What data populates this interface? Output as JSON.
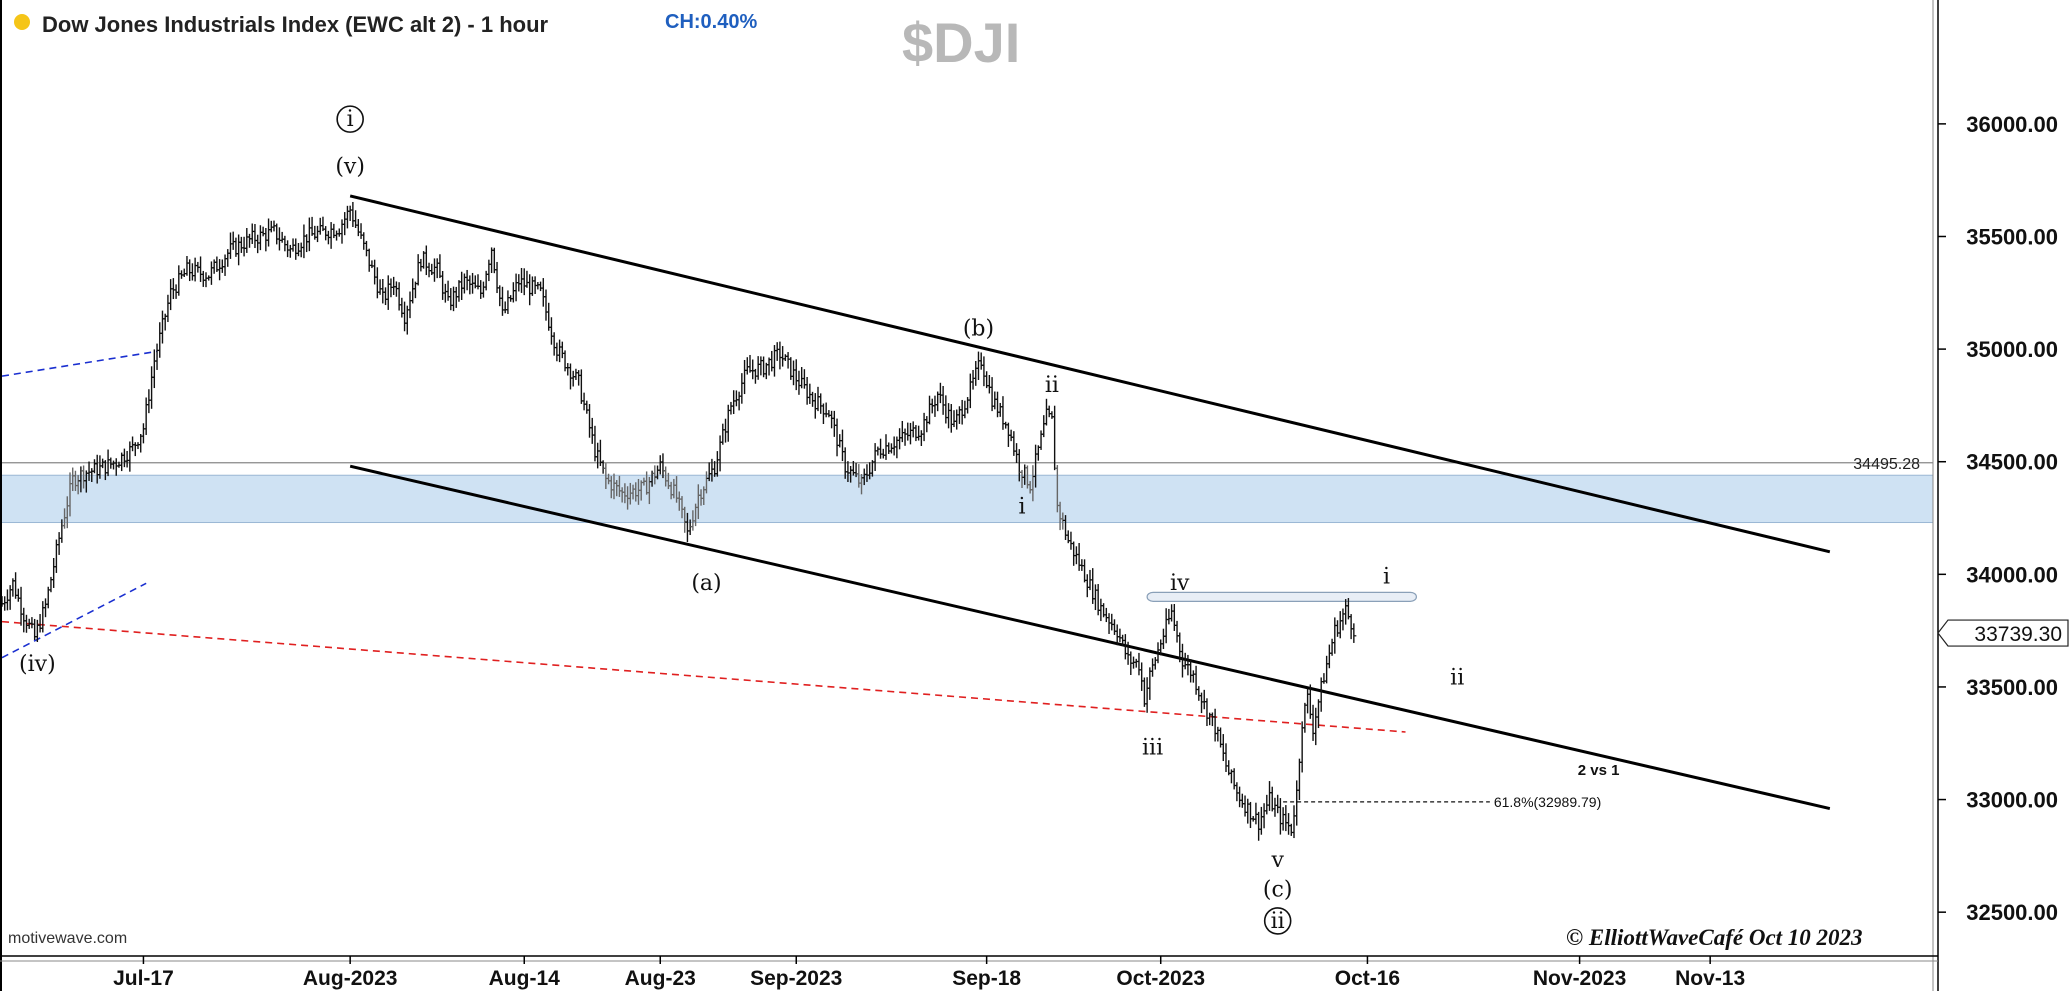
{
  "header": {
    "title": "Dow Jones Industrials Index (EWC alt 2) - 1 hour",
    "change": "CH:0.40%",
    "symbol": "$DJI",
    "status_color": "#f5c518"
  },
  "footer": {
    "brand": "motivewave.com",
    "copyright": "© ElliottWaveCafé Oct 10 2023"
  },
  "chart_data": {
    "type": "ohlc",
    "y_axis": {
      "range": [
        32150,
        36550
      ],
      "ticks": [
        "32500.00",
        "33000.00",
        "33500.00",
        "34000.00",
        "34500.00",
        "35000.00",
        "35500.00",
        "36000.00"
      ],
      "position": "right"
    },
    "x_axis": {
      "ticks": [
        {
          "label": "Jul-17",
          "index": 52
        },
        {
          "label": "Aug-2023",
          "index": 128
        },
        {
          "label": "Aug-14",
          "index": 192
        },
        {
          "label": "Aug-23",
          "index": 242
        },
        {
          "label": "Sep-2023",
          "index": 292
        },
        {
          "label": "Sep-18",
          "index": 362
        },
        {
          "label": "Oct-2023",
          "index": 426
        },
        {
          "label": "Oct-16",
          "index": 502
        },
        {
          "label": "Nov-2023",
          "index": 580
        },
        {
          "label": "Nov-13",
          "index": 628
        }
      ]
    },
    "price_anchors": [
      [
        0,
        33870
      ],
      [
        4,
        33960
      ],
      [
        8,
        33820
      ],
      [
        12,
        33720
      ],
      [
        16,
        33860
      ],
      [
        22,
        34220
      ],
      [
        26,
        34420
      ],
      [
        30,
        34450
      ],
      [
        36,
        34470
      ],
      [
        42,
        34500
      ],
      [
        48,
        34560
      ],
      [
        52,
        34650
      ],
      [
        56,
        34950
      ],
      [
        62,
        35250
      ],
      [
        68,
        35350
      ],
      [
        76,
        35330
      ],
      [
        84,
        35440
      ],
      [
        92,
        35490
      ],
      [
        100,
        35520
      ],
      [
        106,
        35440
      ],
      [
        112,
        35500
      ],
      [
        118,
        35520
      ],
      [
        124,
        35540
      ],
      [
        128,
        35620
      ],
      [
        134,
        35420
      ],
      [
        140,
        35220
      ],
      [
        144,
        35300
      ],
      [
        148,
        35150
      ],
      [
        154,
        35400
      ],
      [
        160,
        35350
      ],
      [
        164,
        35200
      ],
      [
        170,
        35300
      ],
      [
        176,
        35250
      ],
      [
        180,
        35450
      ],
      [
        184,
        35150
      ],
      [
        190,
        35300
      ],
      [
        198,
        35250
      ],
      [
        204,
        35000
      ],
      [
        212,
        34850
      ],
      [
        218,
        34550
      ],
      [
        222,
        34420
      ],
      [
        228,
        34360
      ],
      [
        236,
        34380
      ],
      [
        242,
        34480
      ],
      [
        248,
        34340
      ],
      [
        252,
        34180
      ],
      [
        256,
        34350
      ],
      [
        262,
        34480
      ],
      [
        268,
        34750
      ],
      [
        274,
        34900
      ],
      [
        280,
        34920
      ],
      [
        286,
        34980
      ],
      [
        292,
        34870
      ],
      [
        298,
        34780
      ],
      [
        304,
        34720
      ],
      [
        310,
        34480
      ],
      [
        316,
        34400
      ],
      [
        322,
        34550
      ],
      [
        330,
        34600
      ],
      [
        338,
        34650
      ],
      [
        344,
        34800
      ],
      [
        350,
        34660
      ],
      [
        356,
        34820
      ],
      [
        360,
        34950
      ],
      [
        364,
        34780
      ],
      [
        370,
        34650
      ],
      [
        374,
        34480
      ],
      [
        378,
        34400
      ],
      [
        380,
        34500
      ],
      [
        384,
        34700
      ],
      [
        386,
        34680
      ],
      [
        388,
        34300
      ],
      [
        392,
        34150
      ],
      [
        398,
        34000
      ],
      [
        404,
        33850
      ],
      [
        410,
        33750
      ],
      [
        414,
        33620
      ],
      [
        418,
        33600
      ],
      [
        420,
        33450
      ],
      [
        422,
        33550
      ],
      [
        426,
        33700
      ],
      [
        430,
        33830
      ],
      [
        434,
        33620
      ],
      [
        438,
        33550
      ],
      [
        442,
        33420
      ],
      [
        446,
        33320
      ],
      [
        450,
        33150
      ],
      [
        454,
        33030
      ],
      [
        458,
        32960
      ],
      [
        462,
        32900
      ],
      [
        466,
        33000
      ],
      [
        470,
        32920
      ],
      [
        474,
        32870
      ],
      [
        476,
        33030
      ],
      [
        478,
        33350
      ],
      [
        480,
        33450
      ],
      [
        482,
        33320
      ],
      [
        486,
        33550
      ],
      [
        490,
        33750
      ],
      [
        494,
        33840
      ],
      [
        497,
        33760
      ]
    ],
    "candle_count": 498,
    "last_price": "33739.30",
    "channel_lines": [
      {
        "name": "upper-channel",
        "from": [
          128,
          35680
        ],
        "to": [
          672,
          34100
        ],
        "style": "solid",
        "color": "#000000"
      },
      {
        "name": "lower-channel",
        "from": [
          128,
          34480
        ],
        "to": [
          672,
          32960
        ],
        "style": "solid",
        "color": "#000000"
      },
      {
        "name": "red-trendline",
        "from": [
          0,
          33790
        ],
        "to": [
          516,
          33300
        ],
        "style": "dashed",
        "color": "#e02020"
      },
      {
        "name": "blue-upper",
        "from": [
          0,
          34880
        ],
        "to": [
          57,
          34990
        ],
        "style": "dashed",
        "color": "#1a2fd0"
      },
      {
        "name": "blue-lower",
        "from": [
          0,
          33630
        ],
        "to": [
          53,
          33960
        ],
        "style": "dashed",
        "color": "#1a2fd0"
      }
    ],
    "horizontal_lines": [
      {
        "value": 34495.28,
        "label": "34495.28",
        "color": "#888888"
      }
    ],
    "zones": [
      {
        "from": 34230,
        "to": 34440,
        "color": "#cfe2f3"
      }
    ],
    "target_box": {
      "x_from": 421,
      "x_to": 520,
      "y_from": 33880,
      "y_to": 33920,
      "color": "#e8eef6"
    },
    "fib_line": {
      "from_index": 471,
      "to_index": 547,
      "value": 32989.79,
      "label": "61.8%(32989.79)"
    },
    "wave_labels": [
      {
        "text": "i",
        "index": 128,
        "value": 35990,
        "circled": true
      },
      {
        "text": "(v)",
        "index": 128,
        "value": 35780
      },
      {
        "text": "(iv)",
        "index": 13,
        "value": 33570
      },
      {
        "text": "(a)",
        "index": 259,
        "value": 33930
      },
      {
        "text": "(b)",
        "index": 359,
        "value": 35060
      },
      {
        "text": "ii",
        "index": 386,
        "value": 34810
      },
      {
        "text": "i",
        "index": 375,
        "value": 34270
      },
      {
        "text": "iv",
        "index": 433,
        "value": 33930
      },
      {
        "text": "iii",
        "index": 423,
        "value": 33200
      },
      {
        "text": "v",
        "index": 469,
        "value": 32700
      },
      {
        "text": "(c)",
        "index": 469,
        "value": 32570
      },
      {
        "text": "ii",
        "index": 469,
        "value": 32430,
        "circled": true
      },
      {
        "text": "i",
        "index": 509,
        "value": 33960
      },
      {
        "text": "ii",
        "index": 535,
        "value": 33510
      }
    ],
    "annotation": {
      "text": "2 vs 1",
      "index": 587,
      "value": 33110
    },
    "grid": false
  }
}
